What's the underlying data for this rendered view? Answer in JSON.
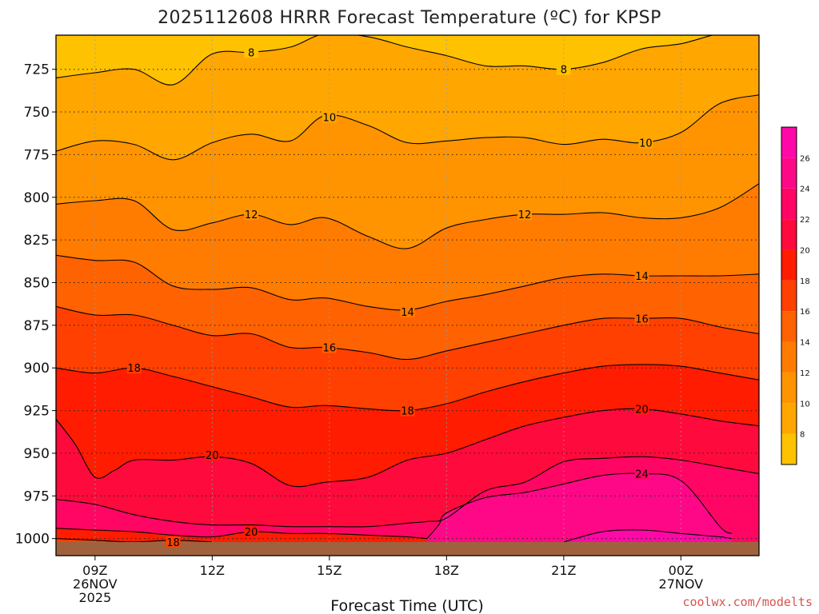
{
  "chart_data": {
    "type": "heatmap",
    "subtype": "filled-contour time-height cross-section",
    "title": "2025112608 HRRR Forecast Temperature (ºC) for KPSP",
    "xlabel": "Forecast Time (UTC)",
    "ylabel": "",
    "credit": "coolwx.com/modelts",
    "x_range_hours": [
      8,
      26
    ],
    "y_range_hpa": [
      1010,
      705
    ],
    "y_scale": "linear, inverted",
    "grid": "dotted",
    "x_ticks": [
      {
        "hour": 9,
        "label": "09Z",
        "sub1": "26NOV",
        "sub2": "2025"
      },
      {
        "hour": 12,
        "label": "12Z",
        "sub1": "",
        "sub2": ""
      },
      {
        "hour": 15,
        "label": "15Z",
        "sub1": "",
        "sub2": ""
      },
      {
        "hour": 18,
        "label": "18Z",
        "sub1": "",
        "sub2": ""
      },
      {
        "hour": 21,
        "label": "21Z",
        "sub1": "",
        "sub2": ""
      },
      {
        "hour": 24,
        "label": "00Z",
        "sub1": "27NOV",
        "sub2": ""
      }
    ],
    "y_ticks": [
      {
        "hpa": 725,
        "label": "725"
      },
      {
        "hpa": 750,
        "label": "750"
      },
      {
        "hpa": 775,
        "label": "775"
      },
      {
        "hpa": 800,
        "label": "800"
      },
      {
        "hpa": 825,
        "label": "825"
      },
      {
        "hpa": 850,
        "label": "850"
      },
      {
        "hpa": 875,
        "label": "875"
      },
      {
        "hpa": 900,
        "label": "900"
      },
      {
        "hpa": 925,
        "label": "925"
      },
      {
        "hpa": 950,
        "label": "950"
      },
      {
        "hpa": 975,
        "label": "975"
      },
      {
        "hpa": 1000,
        "label": "1000"
      }
    ],
    "colorbar": {
      "min": 6,
      "max": 28,
      "labels": [
        {
          "value": 8,
          "label": "8"
        },
        {
          "value": 10,
          "label": "10"
        },
        {
          "value": 12,
          "label": "12"
        },
        {
          "value": 14,
          "label": "14"
        },
        {
          "value": 16,
          "label": "16"
        },
        {
          "value": 18,
          "label": "18"
        },
        {
          "value": 20,
          "label": "20"
        },
        {
          "value": 22,
          "label": "22"
        },
        {
          "value": 24,
          "label": "24"
        },
        {
          "value": 26,
          "label": "26"
        }
      ],
      "bands": [
        {
          "from": 6,
          "to": 8,
          "color": "#ffc200"
        },
        {
          "from": 8,
          "to": 10,
          "color": "#ffa600"
        },
        {
          "from": 10,
          "to": 12,
          "color": "#ff9400"
        },
        {
          "from": 12,
          "to": 14,
          "color": "#ff7c00"
        },
        {
          "from": 14,
          "to": 16,
          "color": "#ff6200"
        },
        {
          "from": 16,
          "to": 18,
          "color": "#ff4000"
        },
        {
          "from": 18,
          "to": 20,
          "color": "#ff1c00"
        },
        {
          "from": 20,
          "to": 22,
          "color": "#ff0a3c"
        },
        {
          "from": 22,
          "to": 24,
          "color": "#ff0664"
        },
        {
          "from": 24,
          "to": 26,
          "color": "#ff0888"
        },
        {
          "from": 26,
          "to": 28,
          "color": "#ff08a8"
        }
      ]
    },
    "ground_color": "#a0623e",
    "ground_surface_hpa": 1002,
    "contours": [
      {
        "value": 8,
        "label": "8",
        "points": [
          [
            8,
            730
          ],
          [
            9,
            727
          ],
          [
            10,
            725
          ],
          [
            11,
            734
          ],
          [
            12,
            716
          ],
          [
            13,
            715
          ],
          [
            14,
            712
          ],
          [
            14.9,
            704
          ],
          [
            16,
            706
          ],
          [
            17,
            712
          ],
          [
            18,
            717
          ],
          [
            19,
            723
          ],
          [
            20,
            723
          ],
          [
            21,
            725
          ],
          [
            22,
            721
          ],
          [
            23,
            713
          ],
          [
            24,
            710
          ],
          [
            25,
            704
          ],
          [
            26,
            702
          ]
        ],
        "labels_at": [
          [
            13,
            715
          ],
          [
            21,
            725
          ]
        ]
      },
      {
        "value": 10,
        "label": "10",
        "points": [
          [
            8,
            773
          ],
          [
            9,
            767
          ],
          [
            10,
            769
          ],
          [
            11,
            778
          ],
          [
            12,
            768
          ],
          [
            13,
            763
          ],
          [
            14,
            767
          ],
          [
            14.9,
            752
          ],
          [
            16,
            758
          ],
          [
            17,
            768
          ],
          [
            18,
            767
          ],
          [
            19,
            765
          ],
          [
            20,
            765
          ],
          [
            21,
            769
          ],
          [
            22,
            766
          ],
          [
            23,
            768
          ],
          [
            24,
            762
          ],
          [
            25,
            745
          ],
          [
            26,
            740
          ]
        ],
        "labels_at": [
          [
            15,
            753
          ],
          [
            23.1,
            768
          ]
        ]
      },
      {
        "value": 12,
        "label": "12",
        "points": [
          [
            8,
            804
          ],
          [
            9,
            802
          ],
          [
            10,
            802
          ],
          [
            11,
            819
          ],
          [
            12,
            815
          ],
          [
            13,
            810
          ],
          [
            14,
            816
          ],
          [
            14.9,
            812
          ],
          [
            16,
            823
          ],
          [
            17,
            830
          ],
          [
            18,
            818
          ],
          [
            19,
            813
          ],
          [
            20,
            810
          ],
          [
            21,
            810
          ],
          [
            22,
            809
          ],
          [
            23,
            812
          ],
          [
            24,
            812
          ],
          [
            25,
            806
          ],
          [
            26,
            792
          ]
        ],
        "labels_at": [
          [
            13,
            810
          ],
          [
            20,
            810
          ]
        ]
      },
      {
        "value": 14,
        "label": "14",
        "points": [
          [
            8,
            834
          ],
          [
            9,
            837
          ],
          [
            10,
            838
          ],
          [
            11,
            852
          ],
          [
            12,
            854
          ],
          [
            13,
            853
          ],
          [
            14,
            860
          ],
          [
            14.9,
            859
          ],
          [
            16,
            864
          ],
          [
            17,
            866
          ],
          [
            18,
            861
          ],
          [
            19,
            857
          ],
          [
            20,
            852
          ],
          [
            21,
            847
          ],
          [
            22,
            845
          ],
          [
            23,
            846
          ],
          [
            24,
            846
          ],
          [
            25,
            846
          ],
          [
            26,
            845
          ]
        ],
        "labels_at": [
          [
            17,
            867
          ],
          [
            23,
            846
          ]
        ]
      },
      {
        "value": 16,
        "label": "16",
        "points": [
          [
            8,
            864
          ],
          [
            9,
            869
          ],
          [
            10,
            869
          ],
          [
            11,
            875
          ],
          [
            12,
            881
          ],
          [
            13,
            880
          ],
          [
            14,
            888
          ],
          [
            14.9,
            888
          ],
          [
            16,
            891
          ],
          [
            17,
            895
          ],
          [
            18,
            890
          ],
          [
            19,
            885
          ],
          [
            20,
            880
          ],
          [
            21,
            875
          ],
          [
            22,
            871
          ],
          [
            23,
            871
          ],
          [
            24,
            871
          ],
          [
            25,
            876
          ],
          [
            26,
            880
          ]
        ],
        "labels_at": [
          [
            15,
            888
          ],
          [
            23,
            871
          ]
        ]
      },
      {
        "value": 18,
        "label": "18",
        "points": [
          [
            8,
            900
          ],
          [
            9,
            903
          ],
          [
            10,
            900
          ],
          [
            11,
            905
          ],
          [
            12,
            911
          ],
          [
            13,
            917
          ],
          [
            14,
            923
          ],
          [
            14.9,
            922
          ],
          [
            16,
            924
          ],
          [
            17,
            925
          ],
          [
            18,
            921
          ],
          [
            19,
            914
          ],
          [
            20,
            908
          ],
          [
            21,
            903
          ],
          [
            22,
            899
          ],
          [
            23,
            898
          ],
          [
            24,
            899
          ],
          [
            25,
            903
          ],
          [
            26,
            907
          ]
        ],
        "labels_at": [
          [
            10,
            900
          ],
          [
            17,
            925
          ]
        ]
      },
      {
        "value": 20,
        "label": "20",
        "points": [
          [
            8,
            930
          ],
          [
            8.5,
            945
          ],
          [
            9,
            964
          ],
          [
            9.5,
            960
          ],
          [
            10,
            954
          ],
          [
            11,
            954
          ],
          [
            12,
            952
          ],
          [
            13,
            956
          ],
          [
            14,
            969
          ],
          [
            14.9,
            967
          ],
          [
            16,
            964
          ],
          [
            17,
            954
          ],
          [
            18,
            950
          ],
          [
            19,
            942
          ],
          [
            20,
            934
          ],
          [
            21,
            929
          ],
          [
            22,
            925
          ],
          [
            23,
            924
          ],
          [
            24,
            927
          ],
          [
            25,
            931
          ],
          [
            26,
            934
          ]
        ],
        "labels_at": [
          [
            12,
            951
          ],
          [
            23,
            924
          ]
        ]
      },
      {
        "value": 22,
        "label": "22",
        "points": [
          [
            8,
            977
          ],
          [
            9,
            980
          ],
          [
            10,
            986
          ],
          [
            11,
            990
          ],
          [
            12,
            992
          ],
          [
            13,
            992
          ],
          [
            14,
            993
          ],
          [
            14.9,
            993
          ],
          [
            16,
            993
          ],
          [
            17,
            991
          ],
          [
            17.5,
            990
          ],
          [
            18,
            988
          ],
          [
            19,
            972
          ],
          [
            20,
            967
          ],
          [
            21,
            955
          ],
          [
            22,
            953
          ],
          [
            23,
            952
          ],
          [
            24,
            954
          ],
          [
            25,
            958
          ],
          [
            26,
            962
          ]
        ],
        "labels_at": []
      },
      {
        "value": 20,
        "label": "20",
        "points": [
          [
            8,
            994
          ],
          [
            9,
            995
          ],
          [
            10,
            996
          ],
          [
            11,
            998
          ],
          [
            12,
            999
          ],
          [
            13,
            996
          ],
          [
            14,
            997
          ],
          [
            14.9,
            997
          ],
          [
            16,
            998
          ],
          [
            17,
            999
          ],
          [
            17.5,
            1000
          ]
        ],
        "labels_at": [
          [
            13,
            996
          ]
        ]
      },
      {
        "value": 18,
        "label": "18",
        "points": [
          [
            8,
            1000
          ],
          [
            9,
            1001
          ],
          [
            10,
            1002
          ],
          [
            11,
            1001
          ],
          [
            12,
            1002
          ]
        ],
        "labels_at": [
          [
            11,
            1002
          ]
        ]
      },
      {
        "value": 24,
        "label": "24",
        "points": [
          [
            17.5,
            1000
          ],
          [
            17.8,
            992
          ],
          [
            18,
            985
          ],
          [
            19,
            976
          ],
          [
            20,
            973
          ],
          [
            21,
            968
          ],
          [
            22,
            963
          ],
          [
            23,
            962
          ],
          [
            24,
            966
          ],
          [
            25,
            993
          ],
          [
            25.3,
            997
          ]
        ],
        "labels_at": [
          [
            23,
            962
          ]
        ]
      },
      {
        "value": 26,
        "label": "",
        "points": [
          [
            21,
            1002
          ],
          [
            22,
            996
          ],
          [
            23,
            995
          ],
          [
            24,
            997
          ],
          [
            25,
            999
          ],
          [
            25.3,
            1000
          ]
        ],
        "labels_at": []
      }
    ]
  }
}
